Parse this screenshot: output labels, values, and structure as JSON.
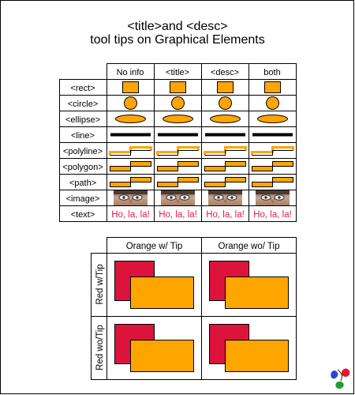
{
  "title": {
    "line1": "<title>and <desc>",
    "line2": "tool tips on Graphical Elements"
  },
  "table1": {
    "columns": [
      "No info",
      "<title>",
      "<desc>",
      "both"
    ],
    "rows": [
      "<rect>",
      "<circle>",
      "<ellipse>",
      "<line>",
      "<polyline>",
      "<polygon>",
      "<path>",
      "<image>",
      "<text>"
    ],
    "sample_text": "Ho, la, la!"
  },
  "table2": {
    "columns": [
      "Orange w/ Tip",
      "Orange wo/ Tip"
    ],
    "rows": [
      "Red w/Tip",
      "Red wo/Tip"
    ]
  },
  "colors": {
    "orange": "#ffa500",
    "red": "#dc143c",
    "text_red": "#e31b4c",
    "line": "#000000"
  },
  "icons": {
    "corner_logo": "svg-logo-icon",
    "image_cell": "face-photo-icon"
  }
}
